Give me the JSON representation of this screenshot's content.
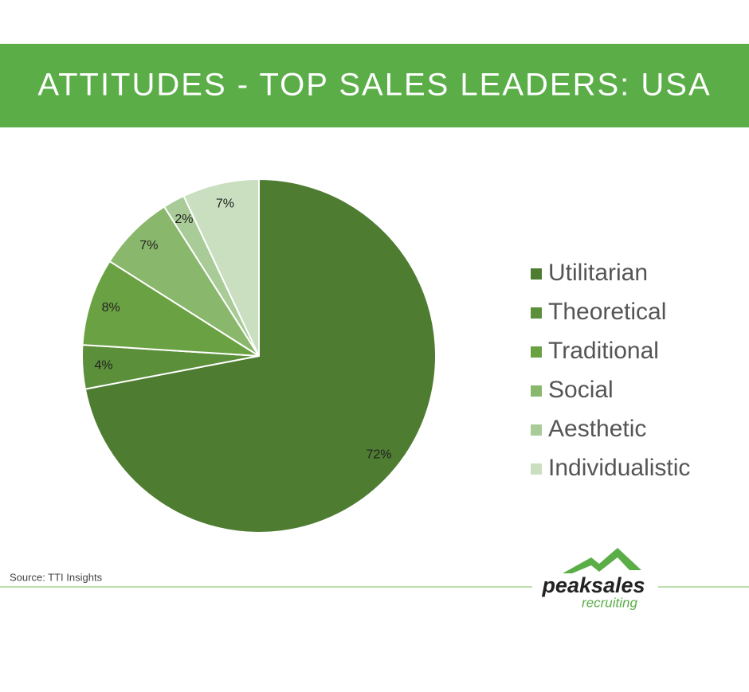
{
  "chart_data": {
    "type": "pie",
    "title": "ATTITUDES - TOP SALES LEADERS: USA",
    "categories": [
      "Utilitarian",
      "Theoretical",
      "Traditional",
      "Social",
      "Aesthetic",
      "Individualistic"
    ],
    "values": [
      72,
      4,
      8,
      7,
      2,
      7
    ],
    "value_labels": [
      "72%",
      "4%",
      "8%",
      "7%",
      "2%",
      "7%"
    ],
    "colors": [
      "#4e7c31",
      "#5b8f39",
      "#6aa142",
      "#89b76b",
      "#a8cb97",
      "#c9dfc0"
    ],
    "legend": "right",
    "source": "Source: TTI Insights"
  },
  "logo": {
    "name": "peaksales",
    "tagline": "recruiting"
  }
}
